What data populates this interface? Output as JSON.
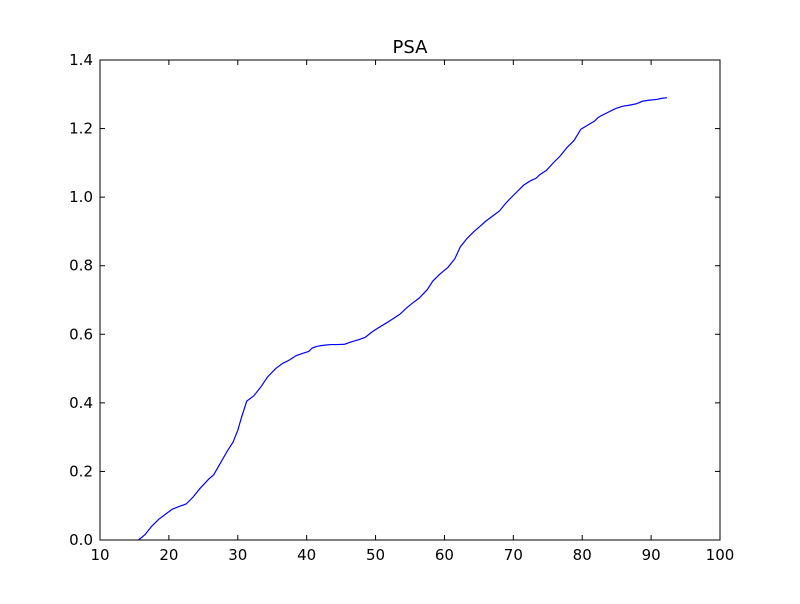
{
  "chart_data": {
    "type": "line",
    "title": "PSA",
    "xlabel": "",
    "ylabel": "",
    "xlim": [
      10,
      100
    ],
    "ylim": [
      0.0,
      1.4
    ],
    "x_ticks": [
      10,
      20,
      30,
      40,
      50,
      60,
      70,
      80,
      90,
      100
    ],
    "x_tick_labels": [
      "10",
      "20",
      "30",
      "40",
      "50",
      "60",
      "70",
      "80",
      "90",
      "100"
    ],
    "y_ticks": [
      0.0,
      0.2,
      0.4,
      0.6,
      0.8,
      1.0,
      1.2,
      1.4
    ],
    "y_tick_labels": [
      "0.0",
      "0.2",
      "0.4",
      "0.6",
      "0.8",
      "1.0",
      "1.2",
      "1.4"
    ],
    "grid": false,
    "legend": "none",
    "series": [
      {
        "color": "#0000ff",
        "x": [
          15.6,
          16.5,
          17.5,
          18.5,
          19.5,
          20.5,
          21.5,
          22.5,
          23.5,
          24.5,
          25.8,
          26.5,
          27.5,
          28.5,
          29.3,
          30.0,
          30.5,
          31.3,
          32.3,
          33.3,
          34.3,
          35.5,
          36.5,
          37.5,
          38.5,
          39.5,
          40.3,
          40.8,
          41.5,
          42.5,
          43.5,
          44.5,
          45.5,
          46.5,
          47.5,
          48.5,
          49.5,
          50.5,
          51.5,
          52.5,
          53.5,
          54.5,
          55.3,
          56.3,
          57.5,
          58.3,
          59.3,
          60.5,
          61.5,
          62.3,
          63.3,
          64.3,
          65.0,
          66.0,
          67.0,
          68.0,
          68.8,
          69.5,
          70.5,
          71.5,
          72.5,
          73.3,
          73.8,
          74.8,
          75.8,
          76.8,
          77.8,
          78.8,
          79.8,
          80.8,
          81.8,
          82.3,
          82.8,
          83.8,
          84.8,
          85.8,
          86.8,
          87.8,
          88.8,
          89.8,
          90.8,
          91.5,
          92.3
        ],
        "y": [
          0.0,
          0.015,
          0.04,
          0.06,
          0.075,
          0.09,
          0.098,
          0.105,
          0.125,
          0.15,
          0.178,
          0.19,
          0.225,
          0.26,
          0.285,
          0.32,
          0.355,
          0.405,
          0.42,
          0.445,
          0.475,
          0.5,
          0.515,
          0.525,
          0.538,
          0.545,
          0.55,
          0.56,
          0.565,
          0.568,
          0.57,
          0.57,
          0.571,
          0.578,
          0.584,
          0.591,
          0.607,
          0.62,
          0.632,
          0.645,
          0.658,
          0.677,
          0.69,
          0.705,
          0.73,
          0.755,
          0.775,
          0.795,
          0.82,
          0.855,
          0.88,
          0.9,
          0.912,
          0.93,
          0.945,
          0.96,
          0.98,
          0.995,
          1.015,
          1.035,
          1.048,
          1.055,
          1.065,
          1.078,
          1.1,
          1.12,
          1.145,
          1.165,
          1.198,
          1.21,
          1.222,
          1.232,
          1.238,
          1.248,
          1.258,
          1.265,
          1.268,
          1.272,
          1.28,
          1.283,
          1.285,
          1.288,
          1.29
        ]
      }
    ]
  }
}
